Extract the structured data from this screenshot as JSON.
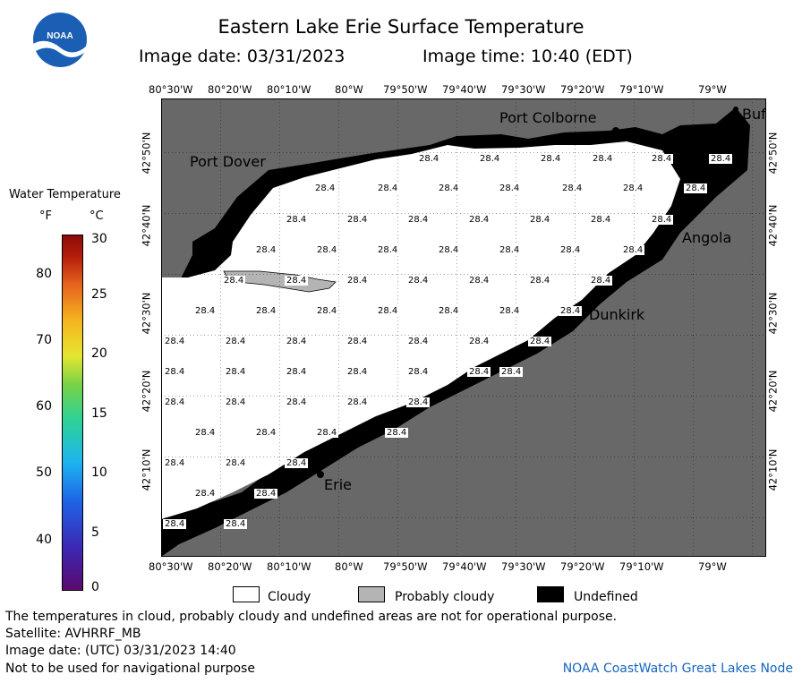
{
  "header": {
    "title": "Eastern Lake Erie Surface Temperature",
    "image_date": "Image date: 03/31/2023",
    "image_time": "Image time: 10:40 (EDT)"
  },
  "logo": {
    "text": "NOAA",
    "icon": "noaa-logo-icon"
  },
  "legend": {
    "title": "Water Temperature",
    "unit_f": "°F",
    "unit_c": "°C",
    "ticks_f": [
      "80",
      "70",
      "60",
      "50",
      "40"
    ],
    "ticks_c": [
      "30",
      "25",
      "20",
      "15",
      "10",
      "5",
      "0"
    ],
    "range_c": [
      0,
      30
    ]
  },
  "map": {
    "lon_labels": [
      "80°30'W",
      "80°20'W",
      "80°10'W",
      "80°W",
      "79°50'W",
      "79°40'W",
      "79°30'W",
      "79°20'W",
      "79°10'W",
      "79°W"
    ],
    "lat_labels": [
      "42°50'N",
      "42°40'N",
      "42°30'N",
      "42°20'N",
      "42°10'N"
    ],
    "places": [
      "Port Colborne",
      "Port Dover",
      "Angola",
      "Dunkirk",
      "Erie",
      "Buf"
    ],
    "temp_value": "28.4",
    "colors": {
      "land": "#686868",
      "cloud": "#ffffff",
      "probably_cloudy": "#b4b4b4",
      "undefined": "#000000"
    }
  },
  "key": {
    "cloudy": "Cloudy",
    "probably_cloudy": "Probably cloudy",
    "undefined": "Undefined"
  },
  "footer": {
    "disclaimer": "The temperatures in cloud, probably cloudy and undefined areas are not for operational purpose.",
    "satellite": "Satellite: AVHRRF_MB",
    "utc_date": "Image date: (UTC) 03/31/2023  14:40",
    "nav_warning": "Not to be used for navigational purpose",
    "credit": "NOAA CoastWatch Great Lakes Node"
  }
}
